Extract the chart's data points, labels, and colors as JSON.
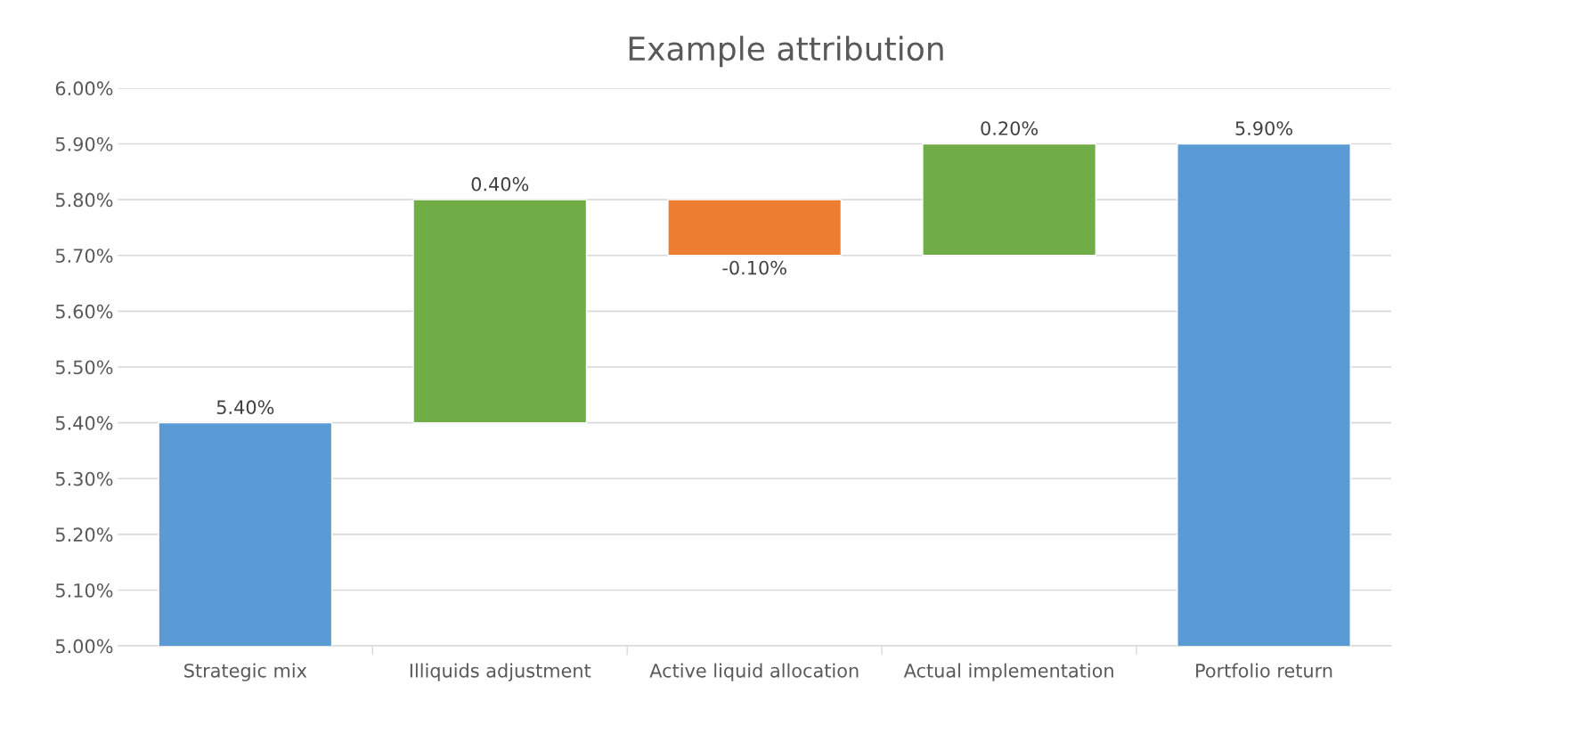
{
  "chart_data": {
    "type": "bar",
    "title": "Example attribution",
    "categories": [
      "Strategic mix",
      "Illiquids adjustment",
      "Active liquid allocation",
      "Actual implementation",
      "Portfolio return"
    ],
    "values": [
      5.4,
      0.4,
      -0.1,
      0.2,
      5.9
    ],
    "base": [
      0,
      5.4,
      5.8,
      5.7,
      0
    ],
    "colors": [
      "#5b9bd5",
      "#70ad47",
      "#ed7d31",
      "#70ad47",
      "#5b9bd5"
    ],
    "value_labels": [
      "5.40%",
      "0.40%",
      "-0.10%",
      "0.20%",
      "5.90%"
    ],
    "ylim": [
      5.0,
      6.0
    ],
    "yticks": [
      {
        "value": 5.0,
        "label": "5.00%"
      },
      {
        "value": 5.1,
        "label": "5.10%"
      },
      {
        "value": 5.2,
        "label": "5.20%"
      },
      {
        "value": 5.3,
        "label": "5.30%"
      },
      {
        "value": 5.4,
        "label": "5.40%"
      },
      {
        "value": 5.5,
        "label": "5.50%"
      },
      {
        "value": 5.6,
        "label": "5.60%"
      },
      {
        "value": 5.7,
        "label": "5.70%"
      },
      {
        "value": 5.8,
        "label": "5.80%"
      },
      {
        "value": 5.9,
        "label": "5.90%"
      },
      {
        "value": 6.0,
        "label": "6.00%"
      }
    ],
    "grid": "y"
  }
}
